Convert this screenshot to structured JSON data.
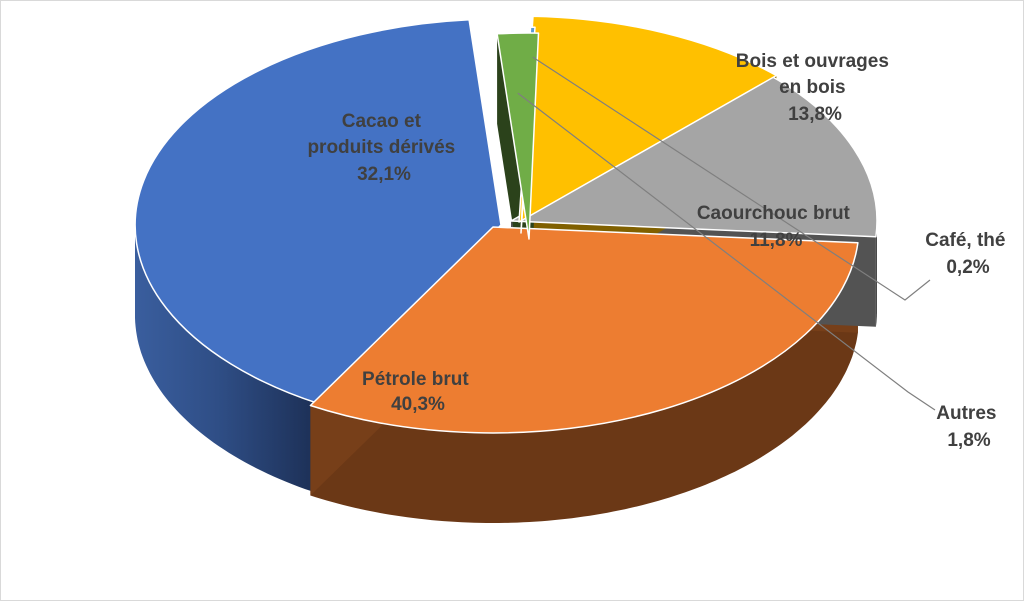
{
  "chart_data": {
    "type": "pie",
    "title": "",
    "style": "3d-exploded",
    "legend": "none",
    "slices": [
      {
        "name": "Pétrole brut",
        "value": 40.3,
        "label": "40,3%",
        "color": "#4472C4"
      },
      {
        "name": "Cacao et produits dérivés",
        "value": 32.1,
        "label": "32,1%",
        "color": "#ED7D31"
      },
      {
        "name": "Bois et ouvrages en bois",
        "value": 13.8,
        "label": "13,8%",
        "color": "#A5A5A5"
      },
      {
        "name": "Caourchouc brut",
        "value": 11.8,
        "label": "11,8%",
        "color": "#FFC000"
      },
      {
        "name": "Café, thé",
        "value": 0.2,
        "label": "0,2%",
        "color": "#5B9BD5"
      },
      {
        "name": "Autres",
        "value": 1.8,
        "label": "1,8%",
        "color": "#70AD47"
      }
    ],
    "text": {
      "petrole": {
        "line1": "Pétrole brut",
        "line2": "40,3%"
      },
      "cacao": {
        "line1": "Cacao et",
        "line2": "produits dérivés",
        "line3": "32,1%"
      },
      "bois": {
        "line1": "Bois et ouvrages",
        "line2": "en bois",
        "line3": "13,8%"
      },
      "caoutchouc": {
        "line1": "Caourchouc brut",
        "line2": "11,8%"
      },
      "cafe": {
        "line1": "Café, thé",
        "line2": "0,2%"
      },
      "autres": {
        "line1": "Autres",
        "line2": "1,8%"
      }
    }
  }
}
